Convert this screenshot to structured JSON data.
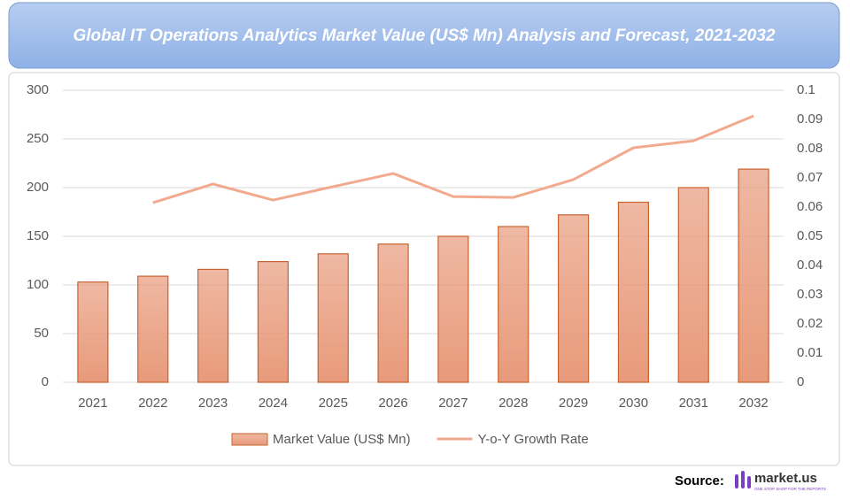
{
  "chart_data": {
    "type": "bar_line",
    "title": "Global IT Operations Analytics  Market Value (US$ Mn) Analysis and Forecast, 2021-2032",
    "categories": [
      "2021",
      "2022",
      "2023",
      "2024",
      "2025",
      "2026",
      "2027",
      "2028",
      "2029",
      "2030",
      "2031",
      "2032"
    ],
    "series": [
      {
        "name": "Market Value (US$ Mn)",
        "type": "bar",
        "color": "#e89a7b",
        "values": [
          103,
          109,
          116,
          124,
          132,
          142,
          150,
          160,
          172,
          185,
          200,
          219
        ]
      },
      {
        "name": "Y-o-Y Growth Rate",
        "type": "line",
        "axis": "y2",
        "color": "#f2aa8e",
        "values": [
          null,
          0.0615,
          0.0679,
          0.0624,
          0.067,
          0.0715,
          0.0636,
          0.0633,
          0.0694,
          0.0803,
          0.0827,
          0.0912
        ]
      }
    ],
    "ylim": [
      0,
      300
    ],
    "yticks": [
      0,
      50,
      100,
      150,
      200,
      250,
      300
    ],
    "y2lim": [
      0,
      0.1
    ],
    "y2ticks": [
      0,
      0.01,
      0.02,
      0.03,
      0.04,
      0.05,
      0.06,
      0.07,
      0.08,
      0.09,
      0.1
    ],
    "grid": true,
    "legend": "bottom"
  },
  "source": {
    "label": "Source:",
    "brand": "market.us",
    "tagline": "ONE STOP SHOP FOR THE REPORTS"
  }
}
